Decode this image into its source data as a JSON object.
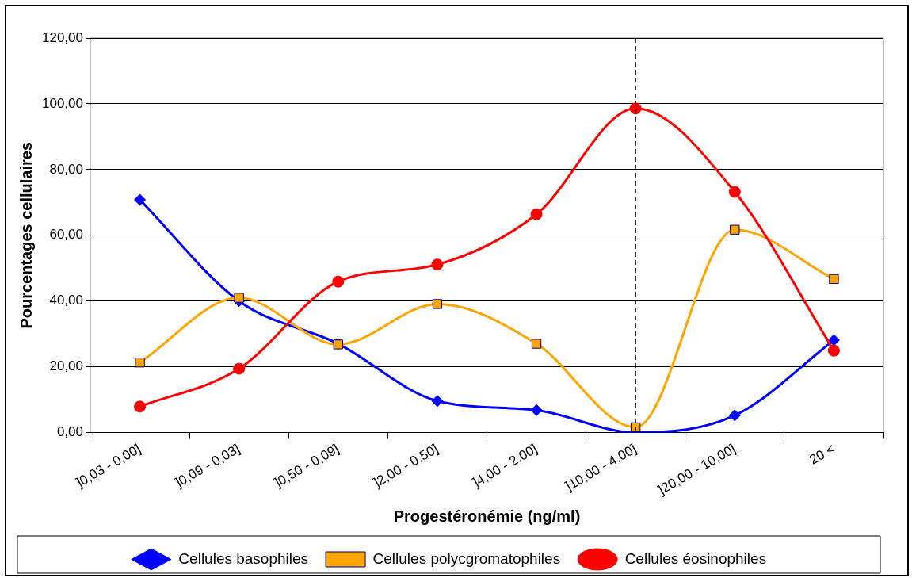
{
  "chart_data": {
    "type": "line",
    "xlabel": "Progestéronémie (ng/ml)",
    "ylabel": "Pourcentages cellulaires",
    "categories": [
      "]0,03 - 0,00]",
      "]0,09 - 0,03]",
      "]0,50 - 0,09]",
      "]2,00 - 0,50]",
      "]4,00 - 2,00]",
      "]10,00 - 4,00]",
      "]20,00 - 10,00]",
      "20 <"
    ],
    "series": [
      {
        "name": "Cellules basophiles",
        "color": "#0000ff",
        "marker": "diamond",
        "values": [
          70.8,
          40,
          27,
          9.6,
          6.8,
          0,
          5.2,
          28.1
        ]
      },
      {
        "name": "Cellules polycgromatophiles",
        "color": "#ffa500",
        "marker": "square",
        "values": [
          21.3,
          41,
          26.8,
          39.1,
          27,
          1.6,
          61.7,
          46.7
        ]
      },
      {
        "name": "Cellules éosinophiles",
        "color": "#ff0000",
        "marker": "circle",
        "values": [
          7.9,
          19.4,
          45.9,
          51.1,
          66.4,
          98.6,
          73.2,
          24.9
        ]
      }
    ],
    "ylim": [
      0,
      120
    ],
    "yticks": [
      {
        "value": 0,
        "label": "0,00"
      },
      {
        "value": 20,
        "label": "20,00"
      },
      {
        "value": 40,
        "label": "40,00"
      },
      {
        "value": 60,
        "label": "60,00"
      },
      {
        "value": 80,
        "label": "80,00"
      },
      {
        "value": 100,
        "label": "100,00"
      },
      {
        "value": 120,
        "label": "120,00"
      }
    ],
    "ref_lines": [
      {
        "axis": "x",
        "value": "]10,00 - 4,00]",
        "color": "#000000",
        "line_style": "dashed"
      }
    ],
    "grid": "y",
    "legend": "bottom",
    "line_style": "solid"
  }
}
